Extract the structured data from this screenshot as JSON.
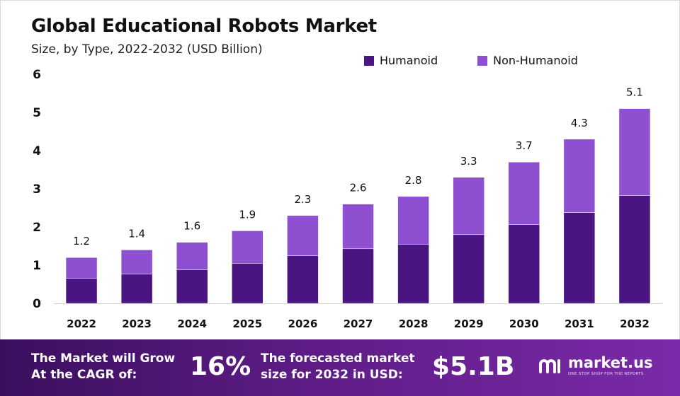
{
  "title": "Global Educational Robots Market",
  "subtitle": "Size, by Type, 2022-2032 (USD Billion)",
  "colors": {
    "humanoid": "#4a1580",
    "non_humanoid": "#8e4fd0",
    "footer_dark": "#3a0f5e",
    "footer_light": "#7a2aa8"
  },
  "chart_data": {
    "type": "bar",
    "stacked": true,
    "categories": [
      "2022",
      "2023",
      "2024",
      "2025",
      "2026",
      "2027",
      "2028",
      "2029",
      "2030",
      "2031",
      "2032"
    ],
    "series": [
      {
        "name": "Humanoid",
        "values": [
          0.66,
          0.77,
          0.88,
          1.05,
          1.25,
          1.43,
          1.55,
          1.8,
          2.06,
          2.38,
          2.82
        ]
      },
      {
        "name": "Non-Humanoid",
        "values": [
          0.54,
          0.63,
          0.72,
          0.85,
          1.05,
          1.17,
          1.25,
          1.5,
          1.64,
          1.92,
          2.28
        ]
      }
    ],
    "totals": [
      "1.2",
      "1.4",
      "1.6",
      "1.9",
      "2.3",
      "2.6",
      "2.8",
      "3.3",
      "3.7",
      "4.3",
      "5.1"
    ],
    "yticks": [
      "0",
      "1",
      "2",
      "3",
      "4",
      "5",
      "6"
    ],
    "ylim": [
      0,
      6
    ],
    "xlabel": "",
    "ylabel": "",
    "grid": false,
    "legend_position": "top-right"
  },
  "footer": {
    "cagr_text": "The Market will Grow At the CAGR of:",
    "cagr_value": "16%",
    "forecast_text": "The forecasted market size for 2032 in USD:",
    "forecast_value": "$5.1B",
    "brand_name": "market.us",
    "brand_tagline": "ONE STOP SHOP FOR THE REPORTS",
    "brand_icon": "market-us-logo-icon"
  }
}
